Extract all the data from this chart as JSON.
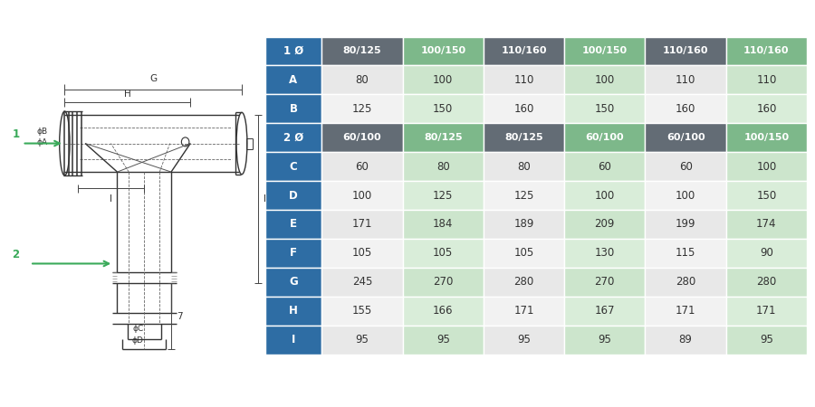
{
  "table_rows": [
    {
      "label": "1 Ø",
      "is_header": true,
      "values": [
        "80/125",
        "100/150",
        "110/160",
        "100/150",
        "110/160",
        "110/160"
      ]
    },
    {
      "label": "A",
      "is_header": false,
      "values": [
        "80",
        "100",
        "110",
        "100",
        "110",
        "110"
      ]
    },
    {
      "label": "B",
      "is_header": false,
      "values": [
        "125",
        "150",
        "160",
        "150",
        "160",
        "160"
      ]
    },
    {
      "label": "2 Ø",
      "is_header": true,
      "values": [
        "60/100",
        "80/125",
        "80/125",
        "60/100",
        "60/100",
        "100/150"
      ]
    },
    {
      "label": "C",
      "is_header": false,
      "values": [
        "60",
        "80",
        "80",
        "60",
        "60",
        "100"
      ]
    },
    {
      "label": "D",
      "is_header": false,
      "values": [
        "100",
        "125",
        "125",
        "100",
        "100",
        "150"
      ]
    },
    {
      "label": "E",
      "is_header": false,
      "values": [
        "171",
        "184",
        "189",
        "209",
        "199",
        "174"
      ]
    },
    {
      "label": "F",
      "is_header": false,
      "values": [
        "105",
        "105",
        "105",
        "130",
        "115",
        "90"
      ]
    },
    {
      "label": "G",
      "is_header": false,
      "values": [
        "245",
        "270",
        "280",
        "270",
        "280",
        "280"
      ]
    },
    {
      "label": "H",
      "is_header": false,
      "values": [
        "155",
        "166",
        "171",
        "167",
        "171",
        "171"
      ]
    },
    {
      "label": "I",
      "is_header": false,
      "values": [
        "95",
        "95",
        "95",
        "95",
        "89",
        "95"
      ]
    }
  ],
  "label_bg": "#2e6da4",
  "header_data_colors": [
    "#636c75",
    "#7db88a",
    "#636c75",
    "#7db88a",
    "#636c75",
    "#7db88a"
  ],
  "data_odd_colors": [
    "#e8e8e8",
    "#cce5cc",
    "#e8e8e8",
    "#cce5cc",
    "#e8e8e8",
    "#cce5cc"
  ],
  "data_even_colors": [
    "#f2f2f2",
    "#d9edd9",
    "#f2f2f2",
    "#d9edd9",
    "#f2f2f2",
    "#d9edd9"
  ],
  "label_text_color": "#ffffff",
  "header_val_text_color": "#ffffff",
  "data_text_color": "#333333",
  "bg_color": "#ffffff",
  "dim_line_color": "#444444",
  "draw_line_color": "#333333"
}
